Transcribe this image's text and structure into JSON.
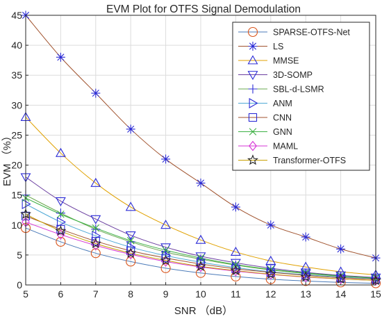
{
  "chart_data": {
    "type": "line",
    "title": "EVM Plot for OTFS Signal Demodulation",
    "xlabel": "SNR （dB）",
    "ylabel": "EVM （%）",
    "xlim": [
      5,
      15
    ],
    "ylim": [
      0,
      45
    ],
    "x": [
      5,
      6,
      7,
      8,
      9,
      10,
      11,
      12,
      13,
      14,
      15
    ],
    "xticks": [
      5,
      6,
      7,
      8,
      9,
      10,
      11,
      12,
      13,
      14,
      15
    ],
    "yticks": [
      0,
      5,
      10,
      15,
      20,
      25,
      30,
      35,
      40,
      45
    ],
    "grid": true,
    "legend_position": "top-right",
    "series": [
      {
        "name": "SPARSE-OTFS-Net",
        "marker": "circle",
        "color": "#d95319",
        "line_color": "#4a7ab8",
        "values": [
          9.5,
          7.2,
          5.3,
          3.9,
          2.8,
          2.0,
          1.4,
          0.95,
          0.65,
          0.42,
          0.28
        ]
      },
      {
        "name": "LS",
        "marker": "asterisk",
        "color": "#2b2bd6",
        "line_color": "#a0522d",
        "values": [
          45,
          38,
          32,
          26,
          21,
          17,
          13,
          10,
          8,
          6,
          4.5
        ]
      },
      {
        "name": "MMSE",
        "marker": "triangle-up",
        "color": "#2b2bd6",
        "line_color": "#e0a100",
        "values": [
          28,
          22,
          17,
          13,
          10,
          7.5,
          5.5,
          4,
          3,
          2.2,
          1.7
        ]
      },
      {
        "name": "3D-SOMP",
        "marker": "triangle-down",
        "color": "#2b2bd6",
        "line_color": "#6b3fa0",
        "values": [
          18,
          14,
          11,
          8.3,
          6.3,
          4.8,
          3.7,
          2.8,
          2.1,
          1.6,
          1.25
        ]
      },
      {
        "name": "SBL-d-LSMR",
        "marker": "plus",
        "color": "#2b2bd6",
        "line_color": "#6aa84f",
        "values": [
          15,
          12,
          9.3,
          7.2,
          5.5,
          4.3,
          3.3,
          2.5,
          1.9,
          1.45,
          1.1
        ]
      },
      {
        "name": "ANM",
        "marker": "triangle-right",
        "color": "#2b2bd6",
        "line_color": "#4fa9d6",
        "values": [
          13.5,
          10.5,
          8.2,
          6.3,
          4.9,
          3.8,
          2.9,
          2.2,
          1.7,
          1.3,
          1.0
        ]
      },
      {
        "name": "CNN",
        "marker": "square",
        "color": "#2b2bd6",
        "line_color": "#a0522d",
        "values": [
          11.5,
          9.3,
          7.3,
          5.7,
          4.5,
          3.5,
          2.7,
          2.1,
          1.6,
          1.2,
          0.95
        ]
      },
      {
        "name": "GNN",
        "marker": "x",
        "color": "#3cb043",
        "line_color": "#3cb043",
        "values": [
          14.5,
          11.8,
          9.5,
          7.4,
          5.8,
          4.5,
          3.4,
          2.6,
          2.0,
          1.5,
          1.15
        ]
      },
      {
        "name": "MAML",
        "marker": "diamond",
        "color": "#d633d6",
        "line_color": "#d633d6",
        "values": [
          10.5,
          8.4,
          6.6,
          5.1,
          3.9,
          3.0,
          2.3,
          1.75,
          1.3,
          1.0,
          0.75
        ]
      },
      {
        "name": "Transformer-OTFS",
        "marker": "pentagram",
        "color": "#222222",
        "line_color": "#c8a000",
        "values": [
          11.8,
          9.0,
          6.9,
          5.3,
          4.1,
          3.1,
          2.4,
          1.8,
          1.35,
          1.0,
          0.75
        ]
      }
    ]
  }
}
